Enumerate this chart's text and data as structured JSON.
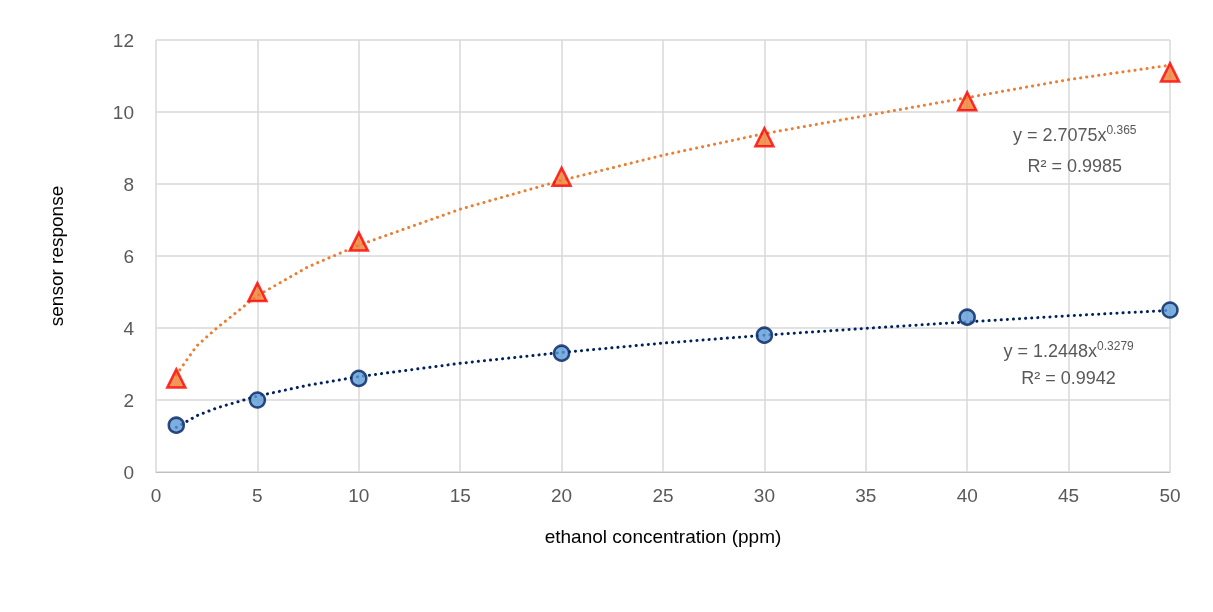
{
  "chart_data": {
    "type": "scatter",
    "xlabel": "ethanol concentration (ppm)",
    "ylabel": "sensor response",
    "xlim": [
      0,
      50
    ],
    "xticks": [
      0,
      5,
      10,
      15,
      20,
      25,
      30,
      35,
      40,
      45,
      50
    ],
    "ylim": [
      0,
      12
    ],
    "yticks": [
      0,
      2,
      4,
      6,
      8,
      10,
      12
    ],
    "grid": true,
    "series": [
      {
        "type": "line",
        "line_style": "dotted",
        "marker": "none",
        "color": "#ed7d31",
        "x": [
          1,
          2,
          3,
          5,
          7.5,
          10,
          15,
          20,
          25,
          30,
          35,
          40,
          45,
          50
        ],
        "values": [
          2.7,
          3.5,
          4.0,
          4.9,
          5.7,
          6.3,
          7.3,
          8.1,
          8.8,
          9.4,
          9.9,
          10.4,
          10.9,
          11.3
        ]
      },
      {
        "type": "line",
        "line_style": "dotted",
        "marker": "none",
        "color": "#002060",
        "x": [
          1,
          2,
          3,
          5,
          7.5,
          10,
          15,
          20,
          25,
          30,
          35,
          40,
          45,
          50
        ],
        "values": [
          1.24,
          1.56,
          1.78,
          2.11,
          2.41,
          2.65,
          3.02,
          3.32,
          3.58,
          3.8,
          3.99,
          4.17,
          4.34,
          4.49
        ]
      },
      {
        "marker": "triangle",
        "color": "#ed7d31",
        "x": [
          1,
          5,
          10,
          20,
          30,
          40,
          50
        ],
        "values": [
          2.6,
          5.0,
          6.4,
          8.2,
          9.3,
          10.3,
          11.1
        ]
      },
      {
        "marker": "circle",
        "color": "#5b9bd5",
        "x": [
          1,
          5,
          10,
          20,
          30,
          40,
          50
        ],
        "values": [
          1.3,
          2.0,
          2.6,
          3.3,
          3.8,
          4.3,
          4.5
        ]
      }
    ],
    "annotations": [
      "y = 2.7075x$^{0.365}$",
      "R² = 0.9985",
      "y = 1.2448x$^{0.3279}$",
      "R² = 0.9942"
    ]
  }
}
